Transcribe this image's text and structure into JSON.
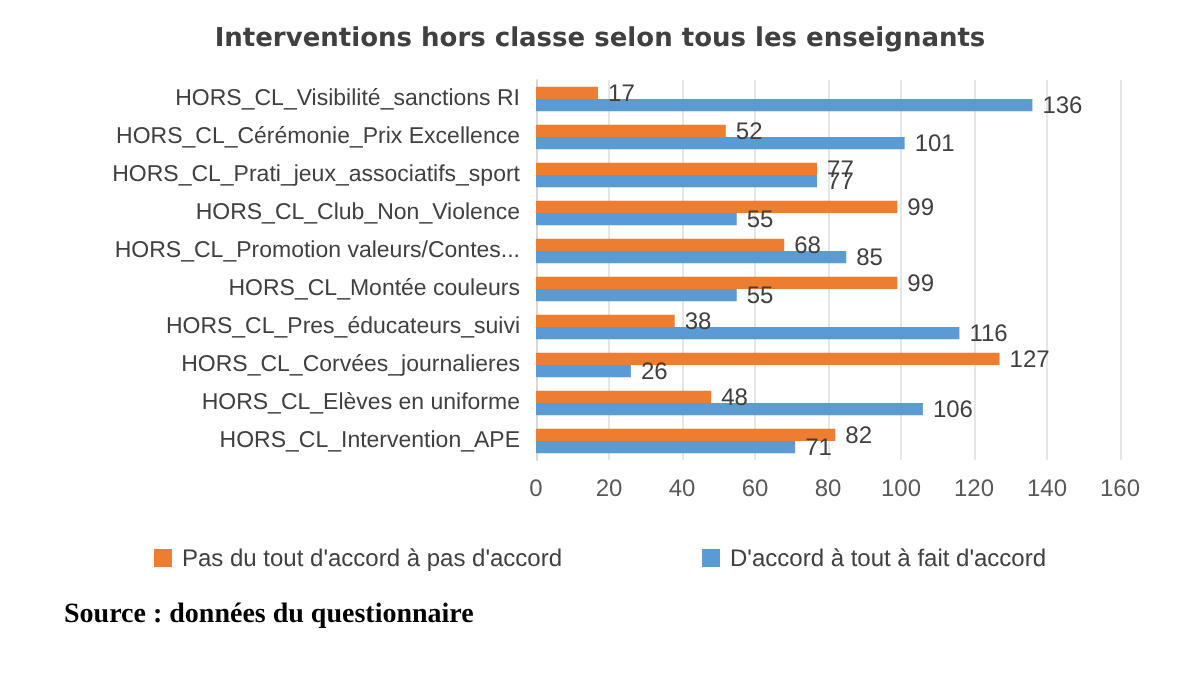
{
  "chart_data": {
    "type": "bar",
    "orientation": "horizontal",
    "title": "Interventions hors classe selon tous les enseignants",
    "categories": [
      "HORS_CL_Visibilité_sanctions RI",
      "HORS_CL_Cérémonie_Prix Excellence",
      "HORS_CL_Prati_jeux_associatifs_sport",
      "HORS_CL_Club_Non_Violence",
      "HORS_CL_Promotion valeurs/Contes...",
      "HORS_CL_Montée couleurs",
      "HORS_CL_Pres_éducateurs_suivi",
      "HORS_CL_Corvées_journalieres",
      "HORS_CL_Elèves en uniforme",
      "HORS_CL_Intervention_APE"
    ],
    "series": [
      {
        "name": "Pas du tout d'accord à pas d'accord",
        "color": "#ed7d31",
        "values": [
          17,
          52,
          77,
          99,
          68,
          99,
          38,
          127,
          48,
          82
        ]
      },
      {
        "name": "D'accord à tout à fait d'accord",
        "color": "#5b9bd5",
        "values": [
          136,
          101,
          77,
          55,
          85,
          55,
          116,
          26,
          106,
          71
        ]
      }
    ],
    "xlim": [
      0,
      160
    ],
    "xticks": [
      0,
      20,
      40,
      60,
      80,
      100,
      120,
      140,
      160
    ],
    "grid": "x",
    "legend": "bottom",
    "data_labels": true,
    "annotations": [
      "Source : données du questionnaire"
    ]
  }
}
